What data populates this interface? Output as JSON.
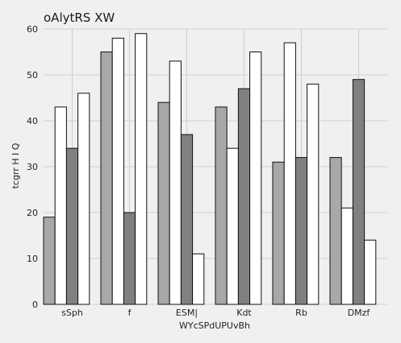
{
  "chart_data": {
    "type": "bar",
    "title": "oAlytRS XW",
    "xlabel": "WYcSPdUPUvBh",
    "ylabel": "tcgrr H I Q",
    "categories": [
      "sSph",
      "f",
      "ESM|",
      "Kdt",
      "Rb",
      "DMzf"
    ],
    "yticks": [
      0,
      10,
      20,
      30,
      40,
      50,
      60
    ],
    "ylim": [
      0,
      60
    ],
    "grid": true,
    "series": [
      {
        "color": "#a8a8a8",
        "values": [
          19,
          55,
          44,
          43,
          31,
          32
        ]
      },
      {
        "color": "#ffffff",
        "values": [
          43,
          58,
          53,
          34,
          57,
          21
        ]
      },
      {
        "color": "#808080",
        "values": [
          34,
          20,
          37,
          47,
          32,
          49
        ]
      },
      {
        "color": "#ffffff",
        "values": [
          46,
          59,
          11,
          55,
          48,
          14
        ]
      }
    ]
  }
}
